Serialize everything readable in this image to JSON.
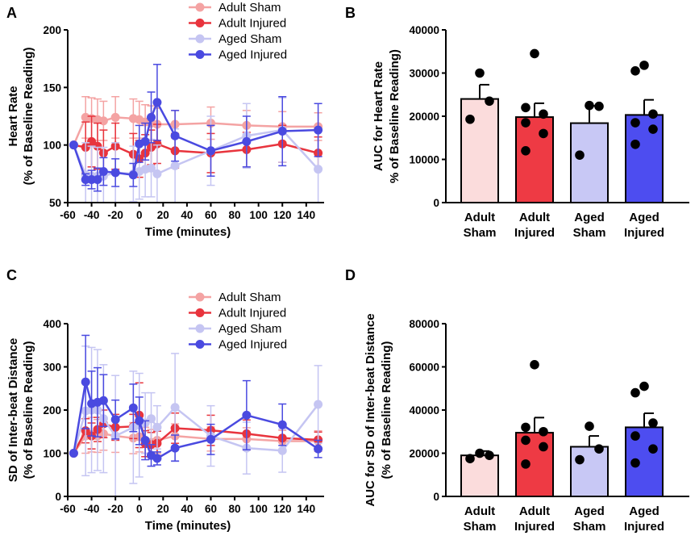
{
  "colors": {
    "adult_sham": "#f4a3a3",
    "adult_injured": "#e8343d",
    "aged_sham": "#c5c5f2",
    "aged_injured": "#4a4ae0",
    "bar_adult_sham": "#fbdcdc",
    "bar_adult_injured": "#ee3a44",
    "bar_aged_sham": "#c8c8f5",
    "bar_aged_injured": "#4d4df0"
  },
  "chart_data": [
    {
      "panel": "A",
      "type": "line",
      "xlabel": "Time (minutes)",
      "ylabel": [
        "Heart Rate",
        "(% of Baseline Reading)"
      ],
      "xlim": [
        -60,
        155
      ],
      "ylim": [
        50,
        200
      ],
      "xticks": [
        "-60",
        "-40",
        "-20",
        "0",
        "20",
        "40",
        "60",
        "80",
        "100",
        "120",
        "140"
      ],
      "xtick_values": [
        -60,
        -40,
        -20,
        0,
        20,
        40,
        60,
        80,
        100,
        120,
        140
      ],
      "yticks": [
        "50",
        "100",
        "150",
        "200"
      ],
      "ytick_values": [
        50,
        100,
        150,
        200
      ],
      "legend": [
        "Adult Sham",
        "Adult Injured",
        "Aged Sham",
        "Aged Injured"
      ],
      "x": [
        -55,
        -45,
        -40,
        -35,
        -30,
        -20,
        -5,
        0,
        5,
        10,
        15,
        30,
        60,
        90,
        120,
        150
      ],
      "series": [
        {
          "name": "Adult Sham",
          "color_key": "adult_sham",
          "y": [
            100,
            124,
            123,
            122,
            121,
            124,
            123,
            122,
            120,
            119,
            118,
            118,
            119,
            117,
            116,
            116
          ],
          "err": [
            0,
            18,
            18,
            18,
            17,
            18,
            17,
            16,
            15,
            15,
            14,
            12,
            14,
            13,
            13,
            12
          ]
        },
        {
          "name": "Adult Injured",
          "color_key": "adult_injured",
          "y": [
            100,
            98,
            103,
            99,
            93,
            99,
            92,
            88,
            93,
            98,
            101,
            95,
            93,
            96,
            101,
            93
          ],
          "err": [
            0,
            22,
            22,
            20,
            20,
            20,
            18,
            16,
            16,
            15,
            17,
            15,
            17,
            15,
            16,
            14
          ]
        },
        {
          "name": "Aged Sham",
          "color_key": "aged_sham",
          "y": [
            100,
            74,
            73,
            73,
            73,
            76,
            75,
            77,
            79,
            80,
            75,
            82,
            95,
            108,
            113,
            79
          ],
          "err": [
            0,
            28,
            26,
            25,
            25,
            26,
            24,
            24,
            24,
            25,
            25,
            32,
            30,
            28,
            28,
            35
          ]
        },
        {
          "name": "Aged Injured",
          "color_key": "aged_injured",
          "y": [
            100,
            70,
            70,
            70,
            77,
            76,
            74,
            101,
            103,
            124,
            137,
            108,
            95,
            103,
            112,
            113
          ],
          "err": [
            0,
            5,
            8,
            10,
            12,
            12,
            10,
            16,
            16,
            22,
            33,
            22,
            22,
            22,
            30,
            23
          ]
        }
      ]
    },
    {
      "panel": "B",
      "type": "bar",
      "ylabel": [
        "AUC for Heart Rate",
        "% of Baseline Reading)"
      ],
      "ylim": [
        0,
        40000
      ],
      "yticks": [
        "0",
        "10000",
        "20000",
        "30000",
        "40000"
      ],
      "ytick_values": [
        0,
        10000,
        20000,
        30000,
        40000
      ],
      "categories": [
        [
          "Adult",
          "Sham"
        ],
        [
          "Adult",
          "Injured"
        ],
        [
          "Aged",
          "Sham"
        ],
        [
          "Aged",
          "Injured"
        ]
      ],
      "values": [
        24000,
        19800,
        18400,
        20300
      ],
      "sem": [
        3300,
        3200,
        4000,
        3500
      ],
      "bar_color_keys": [
        "bar_adult_sham",
        "bar_adult_injured",
        "bar_aged_sham",
        "bar_aged_injured"
      ],
      "points": [
        [
          30000,
          23500,
          19300
        ],
        [
          34500,
          22000,
          20500,
          18500,
          16000,
          12000
        ],
        [
          22500,
          22300,
          11000
        ],
        [
          31800,
          30500,
          20500,
          18500,
          17000,
          13500
        ]
      ]
    },
    {
      "panel": "C",
      "type": "line",
      "xlabel": "Time (minutes)",
      "ylabel": [
        "SD of Inter-beat Distance",
        "(% of Baseline Reading)"
      ],
      "xlim": [
        -60,
        155
      ],
      "ylim": [
        0,
        400
      ],
      "xticks": [
        "-60",
        "-40",
        "-20",
        "0",
        "20",
        "40",
        "60",
        "80",
        "100",
        "120",
        "140"
      ],
      "xtick_values": [
        -60,
        -40,
        -20,
        0,
        20,
        40,
        60,
        80,
        100,
        120,
        140
      ],
      "yticks": [
        "0",
        "100",
        "200",
        "300",
        "400"
      ],
      "ytick_values": [
        0,
        100,
        200,
        300,
        400
      ],
      "legend": [
        "Adult Sham",
        "Adult Injured",
        "Aged Sham",
        "Aged Injured"
      ],
      "x": [
        -55,
        -45,
        -40,
        -35,
        -30,
        -20,
        -5,
        0,
        5,
        10,
        15,
        30,
        60,
        90,
        120,
        150
      ],
      "series": [
        {
          "name": "Adult Sham",
          "color_key": "adult_sham",
          "y": [
            100,
            140,
            143,
            140,
            145,
            140,
            135,
            138,
            130,
            125,
            130,
            140,
            133,
            133,
            128,
            128
          ],
          "err": [
            0,
            40,
            40,
            38,
            38,
            38,
            36,
            35,
            30,
            30,
            30,
            28,
            28,
            26,
            25,
            24
          ]
        },
        {
          "name": "Adult Injured",
          "color_key": "adult_injured",
          "y": [
            100,
            152,
            140,
            155,
            168,
            160,
            162,
            188,
            122,
            120,
            123,
            158,
            153,
            145,
            135,
            131
          ],
          "err": [
            0,
            28,
            30,
            28,
            32,
            30,
            28,
            75,
            30,
            28,
            28,
            35,
            35,
            32,
            30,
            18
          ]
        },
        {
          "name": "Aged Sham",
          "color_key": "aged_sham",
          "y": [
            100,
            198,
            200,
            200,
            180,
            140,
            160,
            165,
            170,
            180,
            160,
            206,
            140,
            112,
            106,
            213
          ],
          "err": [
            0,
            150,
            145,
            140,
            125,
            140,
            130,
            120,
            70,
            60,
            50,
            125,
            70,
            60,
            50,
            90
          ]
        },
        {
          "name": "Aged Injured",
          "color_key": "aged_injured",
          "y": [
            100,
            265,
            215,
            218,
            222,
            178,
            205,
            175,
            130,
            95,
            88,
            112,
            132,
            188,
            166,
            110
          ],
          "err": [
            0,
            108,
            75,
            80,
            60,
            45,
            55,
            55,
            45,
            25,
            15,
            30,
            35,
            80,
            48,
            20
          ]
        }
      ]
    },
    {
      "panel": "D",
      "type": "bar",
      "ylabel": [
        "AUC for SD of Inter-beat Distance",
        "(% of Baseline Reading)"
      ],
      "ylim": [
        0,
        80000
      ],
      "yticks": [
        "0",
        "20000",
        "40000",
        "60000",
        "80000"
      ],
      "ytick_values": [
        0,
        20000,
        40000,
        60000,
        80000
      ],
      "categories": [
        [
          "Adult",
          "Sham"
        ],
        [
          "Adult",
          "Injured"
        ],
        [
          "Aged",
          "Sham"
        ],
        [
          "Aged",
          "Injured"
        ]
      ],
      "values": [
        19000,
        29500,
        23000,
        32000
      ],
      "sem": [
        2000,
        7000,
        5000,
        6500
      ],
      "bar_color_keys": [
        "bar_adult_sham",
        "bar_adult_injured",
        "bar_aged_sham",
        "bar_aged_injured"
      ],
      "points": [
        [
          20000,
          19000,
          17500
        ],
        [
          61000,
          32000,
          30000,
          26000,
          23000,
          15000
        ],
        [
          32500,
          22000,
          17000
        ],
        [
          51000,
          48000,
          34000,
          28000,
          22000,
          15500
        ]
      ]
    }
  ]
}
